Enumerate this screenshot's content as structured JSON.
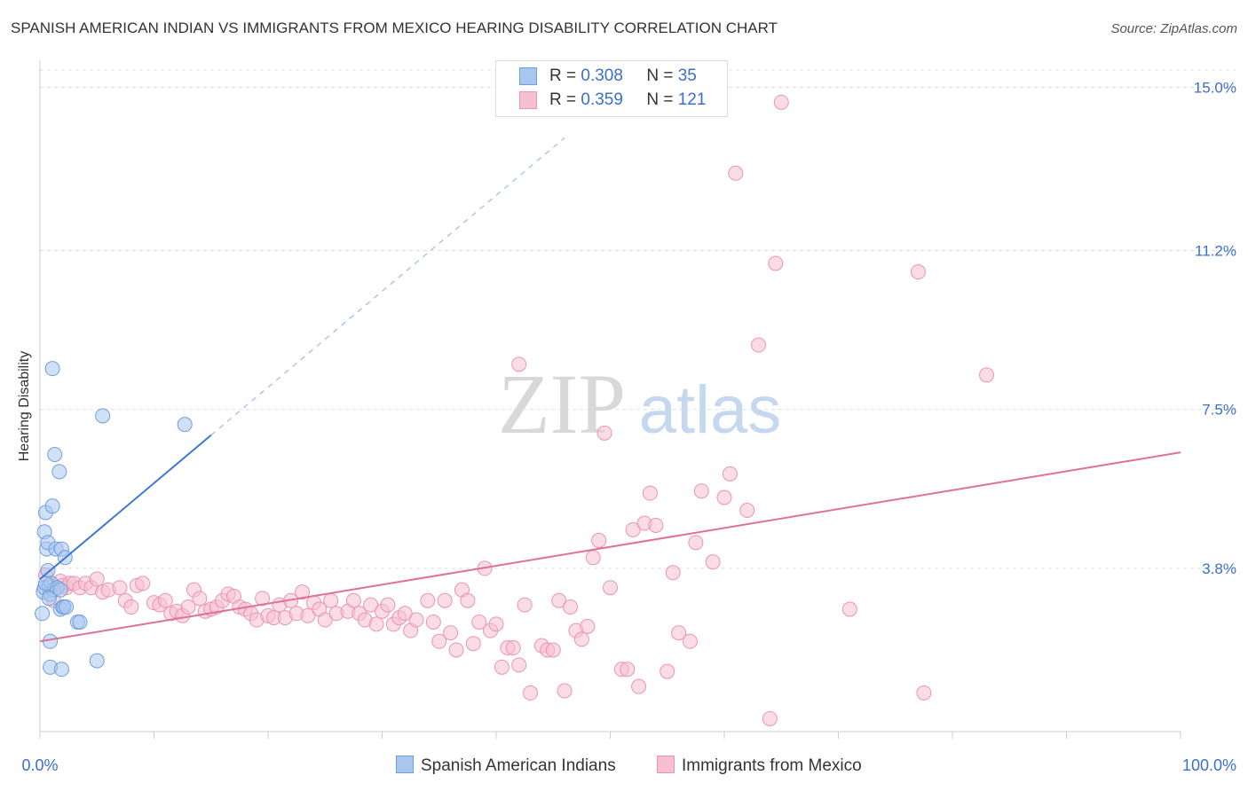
{
  "title": "SPANISH AMERICAN INDIAN VS IMMIGRANTS FROM MEXICO HEARING DISABILITY CORRELATION CHART",
  "source": "Source: ZipAtlas.com",
  "watermark": {
    "zip": "ZIP",
    "atlas": "atlas"
  },
  "legend": {
    "r_label": "R =",
    "n_label": "N =",
    "blue": {
      "r": "0.308",
      "n": "35"
    },
    "pink": {
      "r": "0.359",
      "n": "121"
    }
  },
  "colors": {
    "blue_fill": "#a9c6ee",
    "blue_stroke": "#6f9fdc",
    "blue_line": "#3a78d4",
    "pink_fill": "#f6c0d0",
    "pink_stroke": "#ec94b0",
    "pink_line": "#e0709a",
    "tick_label": "#3a6fcc",
    "grid": "#dddddd"
  },
  "chart_data": {
    "type": "scatter",
    "title": "SPANISH AMERICAN INDIAN VS IMMIGRANTS FROM MEXICO HEARING DISABILITY CORRELATION CHART",
    "ylabel": "Hearing Disability",
    "xlabel": "",
    "x_tick_labels": [
      "0.0%",
      "100.0%"
    ],
    "y_tick_labels": [
      "3.8%",
      "7.5%",
      "11.2%",
      "15.0%"
    ],
    "y_ticks": [
      3.8,
      7.5,
      11.2,
      15.0
    ],
    "xlim": [
      0,
      100
    ],
    "ylim": [
      0,
      15.4
    ],
    "grid": "horizontal dashed",
    "legend_position": "top-center",
    "series": [
      {
        "name": "Spanish American Indians",
        "color": "blue",
        "r": 0.308,
        "n": 35,
        "trend": {
          "x0": 0,
          "y0": 3.55,
          "x1": 15,
          "y1": 6.9,
          "dashed_to_x": 46
        },
        "points": [
          [
            0.2,
            2.75
          ],
          [
            0.3,
            3.25
          ],
          [
            0.4,
            3.35
          ],
          [
            0.4,
            4.65
          ],
          [
            0.5,
            5.1
          ],
          [
            0.6,
            4.25
          ],
          [
            0.7,
            4.4
          ],
          [
            0.7,
            3.75
          ],
          [
            0.8,
            3.4
          ],
          [
            0.9,
            3.2
          ],
          [
            0.9,
            2.1
          ],
          [
            0.9,
            1.5
          ],
          [
            1.0,
            3.45
          ],
          [
            1.1,
            5.25
          ],
          [
            1.1,
            8.45
          ],
          [
            1.2,
            3.3
          ],
          [
            1.3,
            6.45
          ],
          [
            1.4,
            4.25
          ],
          [
            1.5,
            3.35
          ],
          [
            1.7,
            6.05
          ],
          [
            1.8,
            2.85
          ],
          [
            1.8,
            3.3
          ],
          [
            1.9,
            4.25
          ],
          [
            1.9,
            1.45
          ],
          [
            2.0,
            2.9
          ],
          [
            2.1,
            2.9
          ],
          [
            2.2,
            4.05
          ],
          [
            2.3,
            2.9
          ],
          [
            3.3,
            2.55
          ],
          [
            3.5,
            2.55
          ],
          [
            5.0,
            1.65
          ],
          [
            5.5,
            7.35
          ],
          [
            12.7,
            7.15
          ],
          [
            0.5,
            3.45
          ],
          [
            0.8,
            3.1
          ]
        ]
      },
      {
        "name": "Immigrants from Mexico",
        "color": "pink",
        "r": 0.359,
        "n": 121,
        "trend": {
          "x0": 0,
          "y0": 2.1,
          "x1": 100,
          "y1": 6.5
        },
        "points": [
          [
            0.5,
            3.65
          ],
          [
            1.0,
            3.45
          ],
          [
            1.2,
            3.05
          ],
          [
            1.5,
            3.35
          ],
          [
            1.8,
            3.5
          ],
          [
            2.0,
            3.4
          ],
          [
            2.3,
            3.35
          ],
          [
            2.6,
            3.45
          ],
          [
            3.0,
            3.45
          ],
          [
            3.5,
            3.35
          ],
          [
            4.0,
            3.45
          ],
          [
            4.5,
            3.35
          ],
          [
            5.0,
            3.55
          ],
          [
            5.5,
            3.25
          ],
          [
            6.0,
            3.3
          ],
          [
            7.0,
            3.35
          ],
          [
            7.5,
            3.05
          ],
          [
            8.0,
            2.9
          ],
          [
            8.5,
            3.4
          ],
          [
            9.0,
            3.45
          ],
          [
            10.0,
            3.0
          ],
          [
            10.5,
            2.95
          ],
          [
            11.0,
            3.05
          ],
          [
            11.5,
            2.75
          ],
          [
            12.0,
            2.8
          ],
          [
            12.5,
            2.7
          ],
          [
            13.0,
            2.9
          ],
          [
            13.5,
            3.3
          ],
          [
            14.0,
            3.1
          ],
          [
            14.5,
            2.8
          ],
          [
            15.0,
            2.85
          ],
          [
            15.5,
            2.9
          ],
          [
            16.0,
            3.05
          ],
          [
            16.5,
            3.2
          ],
          [
            17.0,
            3.15
          ],
          [
            17.5,
            2.9
          ],
          [
            18.0,
            2.85
          ],
          [
            18.5,
            2.75
          ],
          [
            19.0,
            2.6
          ],
          [
            19.5,
            3.1
          ],
          [
            20.0,
            2.7
          ],
          [
            20.5,
            2.65
          ],
          [
            21.0,
            2.95
          ],
          [
            21.5,
            2.65
          ],
          [
            22.0,
            3.05
          ],
          [
            22.5,
            2.75
          ],
          [
            23.0,
            3.25
          ],
          [
            23.5,
            2.7
          ],
          [
            24.0,
            3.0
          ],
          [
            24.5,
            2.85
          ],
          [
            25.0,
            2.6
          ],
          [
            25.5,
            3.05
          ],
          [
            26.0,
            2.75
          ],
          [
            27.0,
            2.8
          ],
          [
            27.5,
            3.05
          ],
          [
            28.0,
            2.75
          ],
          [
            28.5,
            2.6
          ],
          [
            29.0,
            2.95
          ],
          [
            29.5,
            2.5
          ],
          [
            30.0,
            2.8
          ],
          [
            30.5,
            2.95
          ],
          [
            31.0,
            2.5
          ],
          [
            31.5,
            2.65
          ],
          [
            32.0,
            2.75
          ],
          [
            32.5,
            2.35
          ],
          [
            33.0,
            2.6
          ],
          [
            34.0,
            3.05
          ],
          [
            34.5,
            2.55
          ],
          [
            35.0,
            2.1
          ],
          [
            35.5,
            3.05
          ],
          [
            36.0,
            2.3
          ],
          [
            36.5,
            1.9
          ],
          [
            37.0,
            3.3
          ],
          [
            37.5,
            3.05
          ],
          [
            38.0,
            2.05
          ],
          [
            38.5,
            2.55
          ],
          [
            39.0,
            3.8
          ],
          [
            39.5,
            2.35
          ],
          [
            40.0,
            2.5
          ],
          [
            40.5,
            1.5
          ],
          [
            41.0,
            1.95
          ],
          [
            41.5,
            1.95
          ],
          [
            42.0,
            1.55
          ],
          [
            42.5,
            2.95
          ],
          [
            43.0,
            0.9
          ],
          [
            44.0,
            2.0
          ],
          [
            44.5,
            1.9
          ],
          [
            45.0,
            1.9
          ],
          [
            45.5,
            3.05
          ],
          [
            46.0,
            0.95
          ],
          [
            46.5,
            2.9
          ],
          [
            47.0,
            2.35
          ],
          [
            47.5,
            2.15
          ],
          [
            48.0,
            2.45
          ],
          [
            48.5,
            4.05
          ],
          [
            49.0,
            4.45
          ],
          [
            49.5,
            6.95
          ],
          [
            50.0,
            3.35
          ],
          [
            51.0,
            1.45
          ],
          [
            51.5,
            1.45
          ],
          [
            52.0,
            4.7
          ],
          [
            52.5,
            1.05
          ],
          [
            53.0,
            4.85
          ],
          [
            53.5,
            5.55
          ],
          [
            54.0,
            4.8
          ],
          [
            55.0,
            1.4
          ],
          [
            55.5,
            3.7
          ],
          [
            56.0,
            2.3
          ],
          [
            57.0,
            2.1
          ],
          [
            57.5,
            4.4
          ],
          [
            58.0,
            5.6
          ],
          [
            59.0,
            3.95
          ],
          [
            60.0,
            5.45
          ],
          [
            60.5,
            6.0
          ],
          [
            61.0,
            13.0
          ],
          [
            62.0,
            5.15
          ],
          [
            63.0,
            9.0
          ],
          [
            64.0,
            0.3
          ],
          [
            64.5,
            10.9
          ],
          [
            65.0,
            14.65
          ],
          [
            71.0,
            2.85
          ],
          [
            77.0,
            10.7
          ],
          [
            77.5,
            0.9
          ],
          [
            83.0,
            8.3
          ],
          [
            42.0,
            8.55
          ]
        ]
      }
    ]
  },
  "bottom_legend": [
    {
      "label": "Spanish American Indians"
    },
    {
      "label": "Immigrants from Mexico"
    }
  ]
}
